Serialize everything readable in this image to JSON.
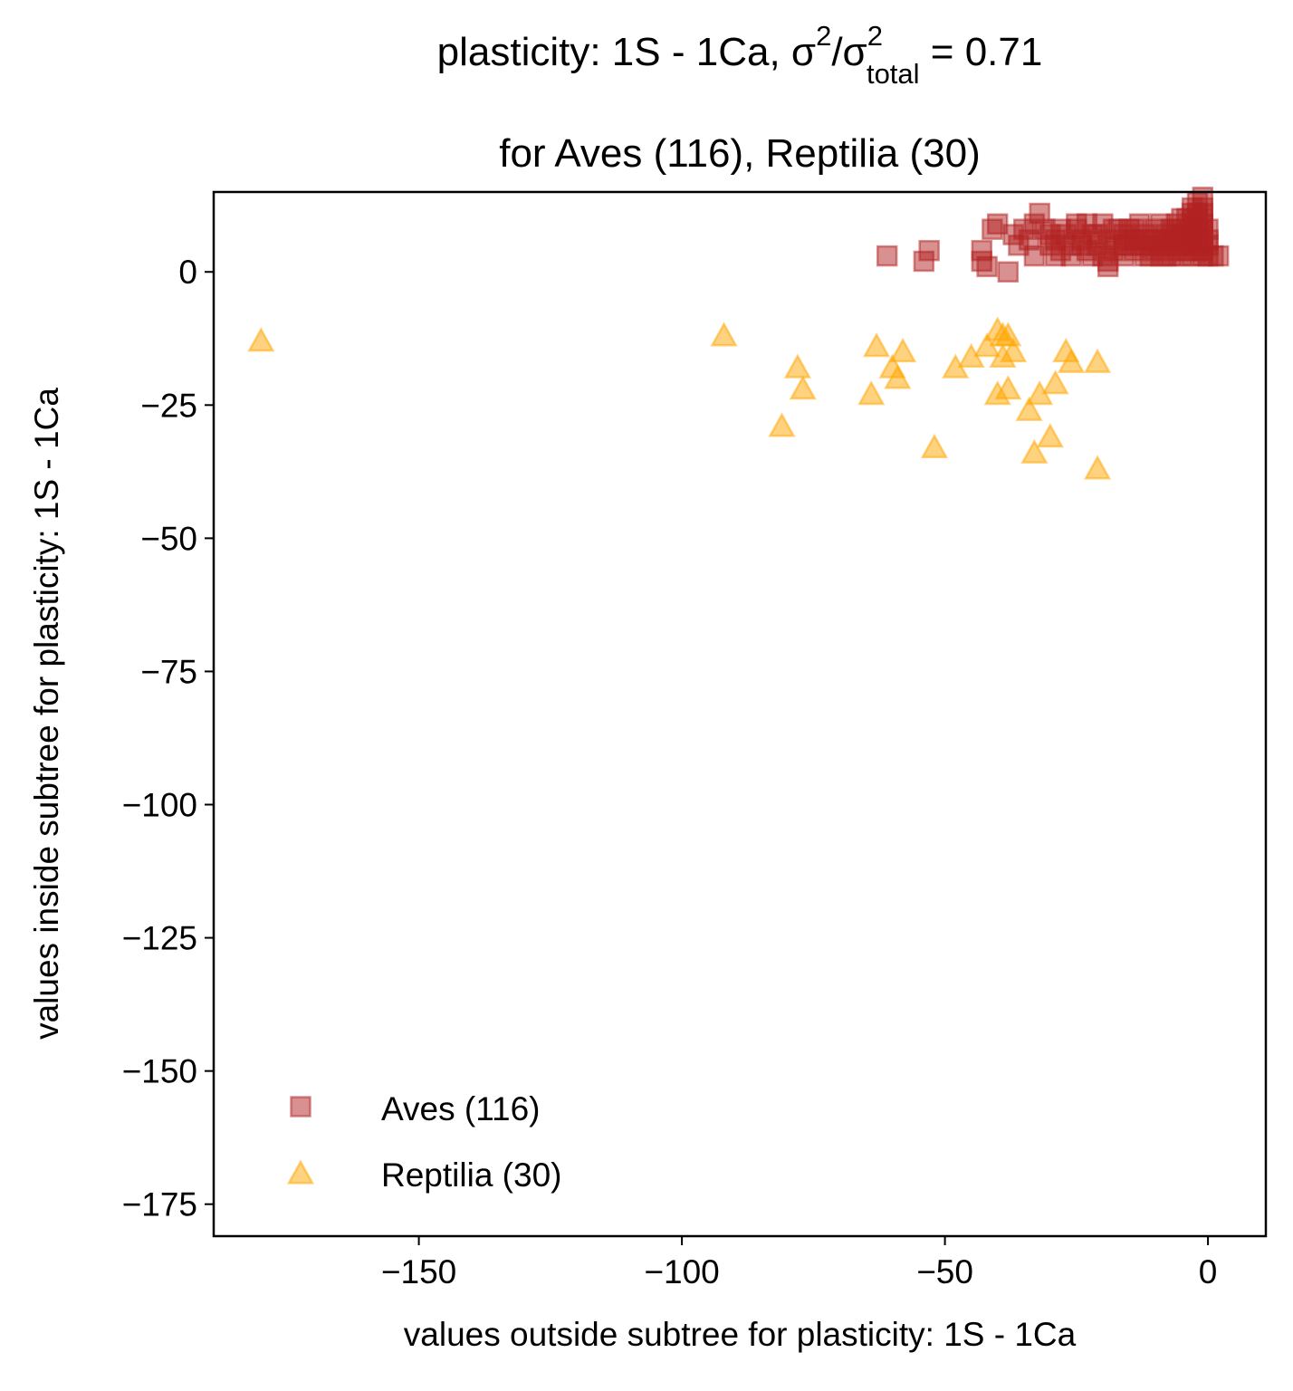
{
  "chart_data": {
    "type": "scatter",
    "title": {
      "line1_prefix": "plasticity: 1S - 1Ca, σ",
      "sup1": "2",
      "slash": "/σ",
      "sup2": "2",
      "sub": "total",
      "line1_suffix": " =  0.71",
      "line2": "for Aves (116), Reptilia (30)"
    },
    "xlabel": "values outside subtree for plasticity: 1S - 1Ca",
    "ylabel": "values inside subtree for plasticity: 1S - 1Ca",
    "xlim": [
      -189,
      11
    ],
    "ylim": [
      -181,
      15
    ],
    "xticks": [
      -150,
      -100,
      -50,
      0
    ],
    "xtick_labels": [
      "−150",
      "−100",
      "−50",
      "0"
    ],
    "yticks": [
      0,
      -25,
      -50,
      -75,
      -100,
      -125,
      -150,
      -175
    ],
    "ytick_labels": [
      "0",
      "−25",
      "−50",
      "−75",
      "−100",
      "−125",
      "−150",
      "−175"
    ],
    "legend_position": "lower-left",
    "series": [
      {
        "name": "Aves (116)",
        "marker": "square",
        "color": "#b22222",
        "points": [
          [
            -61,
            3
          ],
          [
            -54,
            2
          ],
          [
            -53,
            4
          ],
          [
            -43,
            4
          ],
          [
            -43,
            2
          ],
          [
            -42,
            1
          ],
          [
            -38,
            0
          ],
          [
            -41,
            8
          ],
          [
            -40,
            9
          ],
          [
            -37,
            7
          ],
          [
            -35,
            8
          ],
          [
            -33,
            9
          ],
          [
            -32,
            11
          ],
          [
            -31,
            8
          ],
          [
            -30,
            5
          ],
          [
            -29,
            6
          ],
          [
            -28,
            4
          ],
          [
            -27,
            7
          ],
          [
            -26,
            5
          ],
          [
            -25,
            8
          ],
          [
            -24,
            6
          ],
          [
            -23,
            4
          ],
          [
            -22,
            7
          ],
          [
            -21,
            5
          ],
          [
            -20,
            9
          ],
          [
            -20,
            3
          ],
          [
            -19,
            6
          ],
          [
            -18,
            4
          ],
          [
            -18,
            8
          ],
          [
            -17,
            5
          ],
          [
            -16,
            7
          ],
          [
            -16,
            3
          ],
          [
            -15,
            6
          ],
          [
            -14,
            4
          ],
          [
            -14,
            8
          ],
          [
            -13,
            5
          ],
          [
            -12,
            7
          ],
          [
            -12,
            3
          ],
          [
            -11,
            6
          ],
          [
            -10,
            4
          ],
          [
            -10,
            8
          ],
          [
            -9,
            5
          ],
          [
            -8,
            7
          ],
          [
            -8,
            3
          ],
          [
            -7,
            6
          ],
          [
            -6,
            4
          ],
          [
            -6,
            8
          ],
          [
            -5,
            5
          ],
          [
            -5,
            3
          ],
          [
            -4,
            7
          ],
          [
            -4,
            4
          ],
          [
            -3,
            6
          ],
          [
            -3,
            9
          ],
          [
            -3,
            3
          ],
          [
            -2,
            5
          ],
          [
            -2,
            8
          ],
          [
            -2,
            11
          ],
          [
            -2,
            13
          ],
          [
            -2,
            4
          ],
          [
            -1,
            6
          ],
          [
            -1,
            9
          ],
          [
            -1,
            3
          ],
          [
            -1,
            12
          ],
          [
            -1,
            7
          ],
          [
            0,
            5
          ],
          [
            0,
            8
          ],
          [
            0,
            3
          ],
          [
            -1,
            14
          ],
          [
            -2,
            10
          ],
          [
            -3,
            12
          ],
          [
            1,
            3
          ],
          [
            2,
            3
          ],
          [
            -36,
            5
          ],
          [
            -34,
            6
          ],
          [
            -33,
            3
          ],
          [
            -29,
            3
          ],
          [
            -26,
            3
          ],
          [
            -25,
            9
          ],
          [
            -23,
            9
          ],
          [
            -22,
            3
          ],
          [
            -19,
            1
          ],
          [
            -15,
            8
          ],
          [
            -13,
            9
          ],
          [
            -11,
            3
          ],
          [
            -9,
            9
          ],
          [
            -7,
            3
          ],
          [
            -6,
            9
          ],
          [
            -5,
            10
          ],
          [
            -4,
            10
          ],
          [
            -3,
            11
          ],
          [
            -30,
            7
          ],
          [
            -28,
            8
          ],
          [
            -24,
            5
          ],
          [
            -21,
            7
          ],
          [
            -19,
            2
          ],
          [
            -17,
            8
          ],
          [
            -16,
            5
          ],
          [
            -14,
            6
          ],
          [
            -12,
            5
          ],
          [
            -10,
            6
          ],
          [
            -9,
            3
          ],
          [
            -8,
            5
          ],
          [
            -7,
            8
          ],
          [
            -6,
            6
          ],
          [
            -5,
            7
          ],
          [
            -4,
            5
          ],
          [
            -3,
            5
          ],
          [
            -3,
            8
          ],
          [
            -2,
            6
          ],
          [
            -2,
            7
          ],
          [
            -1,
            4
          ],
          [
            -1,
            5
          ],
          [
            -1,
            8
          ],
          [
            -1,
            10
          ],
          [
            -1,
            11
          ],
          [
            0,
            6
          ]
        ]
      },
      {
        "name": "Reptilia (30)",
        "marker": "triangle",
        "color": "#ffa500",
        "points": [
          [
            -180,
            -13
          ],
          [
            -92,
            -12
          ],
          [
            -81,
            -29
          ],
          [
            -78,
            -18
          ],
          [
            -77,
            -22
          ],
          [
            -64,
            -23
          ],
          [
            -63,
            -14
          ],
          [
            -60,
            -18
          ],
          [
            -59,
            -20
          ],
          [
            -58,
            -15
          ],
          [
            -52,
            -33
          ],
          [
            -48,
            -18
          ],
          [
            -45,
            -16
          ],
          [
            -42,
            -14
          ],
          [
            -40,
            -11
          ],
          [
            -40,
            -23
          ],
          [
            -39,
            -12
          ],
          [
            -38,
            -12
          ],
          [
            -38,
            -22
          ],
          [
            -37,
            -15
          ],
          [
            -34,
            -26
          ],
          [
            -33,
            -34
          ],
          [
            -32,
            -23
          ],
          [
            -30,
            -31
          ],
          [
            -29,
            -21
          ],
          [
            -27,
            -15
          ],
          [
            -26,
            -17
          ],
          [
            -21,
            -17
          ],
          [
            -21,
            -37
          ],
          [
            -39,
            -16
          ]
        ]
      }
    ]
  }
}
